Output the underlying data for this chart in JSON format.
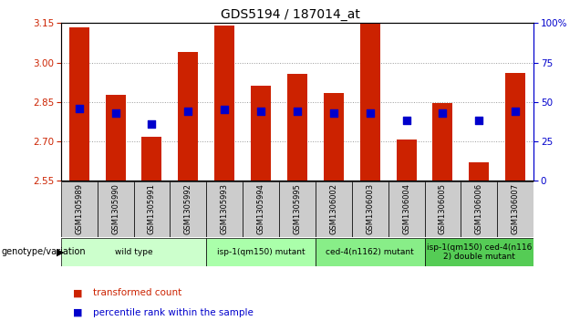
{
  "title": "GDS5194 / 187014_at",
  "samples": [
    "GSM1305989",
    "GSM1305990",
    "GSM1305991",
    "GSM1305992",
    "GSM1305993",
    "GSM1305994",
    "GSM1305995",
    "GSM1306002",
    "GSM1306003",
    "GSM1306004",
    "GSM1306005",
    "GSM1306006",
    "GSM1306007"
  ],
  "transformed_counts": [
    3.135,
    2.875,
    2.715,
    3.04,
    3.14,
    2.91,
    2.955,
    2.885,
    3.21,
    2.705,
    2.845,
    2.62,
    2.96
  ],
  "percentile_ranks": [
    46,
    43,
    36,
    44,
    45,
    44,
    44,
    43,
    43,
    38,
    43,
    38,
    44
  ],
  "ylim_left": [
    2.55,
    3.15
  ],
  "ylim_right": [
    0,
    100
  ],
  "yticks_left": [
    2.55,
    2.7,
    2.85,
    3.0,
    3.15
  ],
  "yticks_right": [
    0,
    25,
    50,
    75,
    100
  ],
  "bar_color": "#cc2200",
  "dot_color": "#0000cc",
  "bar_width": 0.55,
  "dot_size": 28,
  "genotype_groups": [
    {
      "label": "wild type",
      "start": 0,
      "end": 3,
      "color": "#ccffcc"
    },
    {
      "label": "isp-1(qm150) mutant",
      "start": 4,
      "end": 6,
      "color": "#aaffaa"
    },
    {
      "label": "ced-4(n1162) mutant",
      "start": 7,
      "end": 9,
      "color": "#88ee88"
    },
    {
      "label": "isp-1(qm150) ced-4(n116\n2) double mutant",
      "start": 10,
      "end": 12,
      "color": "#55cc55"
    }
  ],
  "genotype_label": "genotype/variation",
  "legend_items": [
    {
      "label": "transformed count",
      "color": "#cc2200"
    },
    {
      "label": "percentile rank within the sample",
      "color": "#0000cc"
    }
  ],
  "plot_bg_color": "#ffffff",
  "tick_color_left": "#cc2200",
  "tick_color_right": "#0000cc",
  "grid_color": "#999999",
  "sample_bg_color": "#cccccc"
}
